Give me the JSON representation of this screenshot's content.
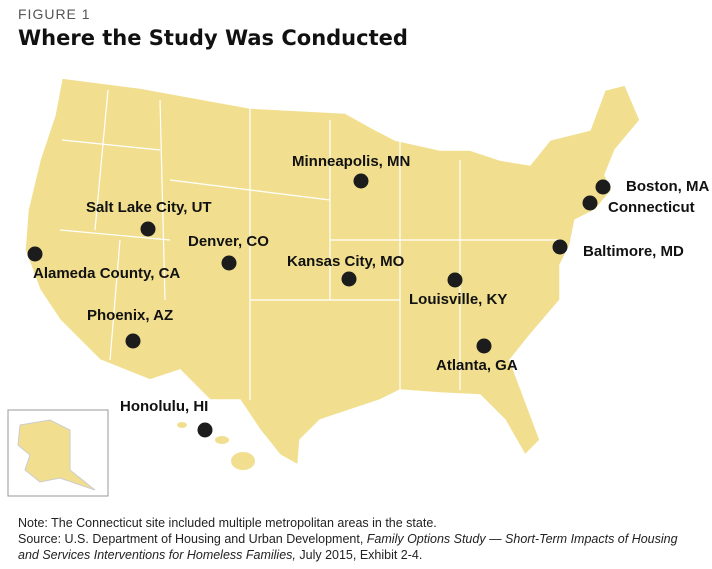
{
  "figure_label": "FIGURE 1",
  "title": "Where the Study Was Conducted",
  "sites": [
    {
      "label": "Minneapolis, MN"
    },
    {
      "label": "Salt Lake City, UT"
    },
    {
      "label": "Denver, CO"
    },
    {
      "label": "Kansas City, MO"
    },
    {
      "label": "Alameda County, CA"
    },
    {
      "label": "Phoenix, AZ"
    },
    {
      "label": "Honolulu, HI"
    },
    {
      "label": "Louisville, KY"
    },
    {
      "label": "Atlanta, GA"
    },
    {
      "label": "Boston, MA"
    },
    {
      "label": "Connecticut"
    },
    {
      "label": "Baltimore, MD"
    }
  ],
  "note": "Note: The Connecticut site included multiple metropolitan areas in the state.",
  "source": {
    "prefix": "Source: U.S. Department of Housing and Urban Development, ",
    "title": "Family Options Study — Short-Term Impacts of Housing and Services Interventions for Homeless Families,",
    "suffix": " July 2015, Exhibit 2-4."
  }
}
